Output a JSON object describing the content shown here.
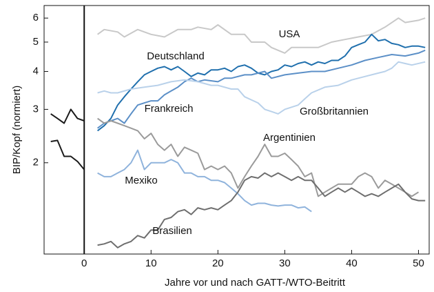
{
  "chart_data": {
    "type": "line",
    "xlabel": "Jahre vor und nach GATT-/WTO-Beitritt",
    "ylabel": "BIP/Kopf (normiert)",
    "xlim": [
      -6,
      51.6
    ],
    "xticks": [
      0,
      10,
      20,
      30,
      40,
      50
    ],
    "ylim": [
      1,
      6.6
    ],
    "yticks": [
      2,
      3,
      4,
      5,
      6
    ],
    "log_y": true,
    "vline": 0,
    "series": [
      {
        "color": "#1a1a1a",
        "x": [
          -5,
          -4,
          -3,
          -2,
          -1,
          0
        ],
        "values": [
          2.9,
          2.8,
          2.7,
          3.0,
          2.8,
          2.75
        ]
      },
      {
        "color": "#1a1a1a",
        "x": [
          -5,
          -4,
          -3,
          -2,
          -1,
          0
        ],
        "values": [
          2.35,
          2.37,
          2.1,
          2.1,
          2.02,
          1.9
        ]
      },
      {
        "name": "USA",
        "color": "#c8c8c8",
        "x": [
          2,
          3,
          5,
          6,
          8,
          10,
          12,
          14,
          16,
          17,
          19,
          20,
          22,
          24,
          25,
          27,
          28,
          30,
          31,
          33,
          35,
          37,
          39,
          41,
          43,
          45,
          47,
          48,
          50,
          51
        ],
        "values": [
          5.3,
          5.5,
          5.4,
          5.2,
          5.5,
          5.3,
          5.2,
          5.5,
          5.5,
          5.6,
          5.5,
          5.7,
          5.3,
          5.3,
          5.0,
          5.0,
          4.8,
          4.6,
          4.8,
          4.8,
          4.8,
          5.0,
          5.1,
          5.2,
          5.3,
          5.6,
          6.0,
          5.8,
          5.9,
          6.0
        ]
      },
      {
        "name": "Deutschland",
        "color": "#1f6fad",
        "x": [
          2,
          3,
          4,
          5,
          6,
          7,
          8,
          9,
          10,
          11,
          12,
          13,
          14,
          15,
          16,
          17,
          18,
          19,
          20,
          21,
          22,
          23,
          24,
          25,
          26,
          27,
          28,
          29,
          30,
          31,
          32,
          33,
          34,
          35,
          36,
          37,
          38,
          39,
          40,
          41,
          42,
          43,
          44,
          45,
          46,
          47,
          48,
          49,
          50,
          51
        ],
        "values": [
          2.55,
          2.65,
          2.8,
          3.1,
          3.3,
          3.5,
          3.7,
          3.9,
          4.0,
          4.1,
          4.15,
          4.05,
          4.15,
          4.0,
          3.85,
          3.95,
          3.9,
          4.05,
          4.05,
          4.1,
          4.0,
          4.15,
          4.2,
          4.1,
          3.95,
          3.9,
          4.0,
          4.05,
          4.2,
          4.15,
          4.25,
          4.3,
          4.2,
          4.3,
          4.25,
          4.35,
          4.35,
          4.5,
          4.8,
          4.9,
          5.0,
          5.3,
          5.05,
          5.1,
          4.95,
          4.9,
          4.8,
          4.85,
          4.85,
          4.8
        ]
      },
      {
        "name": "Frankreich",
        "color": "#5b8fc7",
        "x": [
          2,
          3,
          5,
          6,
          7,
          8,
          9,
          10,
          11,
          12,
          13,
          14,
          15,
          16,
          17,
          18,
          20,
          21,
          22,
          24,
          25,
          27,
          28,
          30,
          32,
          34,
          36,
          38,
          40,
          42,
          44,
          46,
          48,
          50,
          51
        ],
        "values": [
          2.6,
          2.7,
          2.8,
          2.7,
          2.9,
          3.1,
          3.15,
          3.2,
          3.2,
          3.35,
          3.45,
          3.55,
          3.7,
          3.8,
          3.7,
          3.75,
          3.7,
          3.8,
          3.8,
          3.9,
          3.9,
          4.0,
          3.8,
          3.9,
          3.95,
          4.0,
          4.0,
          4.1,
          4.2,
          4.35,
          4.45,
          4.55,
          4.5,
          4.6,
          4.7
        ]
      },
      {
        "name": "Großbritannien",
        "color": "#b9d1ea",
        "x": [
          2,
          3,
          4,
          5,
          7,
          9,
          11,
          13,
          15,
          17,
          19,
          20,
          22,
          23,
          24,
          26,
          27,
          28,
          29,
          30,
          32,
          33,
          34,
          36,
          38,
          40,
          42,
          44,
          45,
          46,
          47,
          48,
          49,
          51
        ],
        "values": [
          3.4,
          3.45,
          3.4,
          3.4,
          3.5,
          3.55,
          3.6,
          3.7,
          3.75,
          3.7,
          3.6,
          3.6,
          3.5,
          3.5,
          3.3,
          3.15,
          3.0,
          2.95,
          2.9,
          3.0,
          3.1,
          3.25,
          3.4,
          3.55,
          3.6,
          3.75,
          3.85,
          3.95,
          4.0,
          4.1,
          4.3,
          4.25,
          4.2,
          4.3
        ]
      },
      {
        "name": "Argentinien",
        "color": "#9a9a9a",
        "x": [
          2,
          3,
          4,
          5,
          6,
          7,
          8,
          9,
          10,
          11,
          12,
          13,
          14,
          15,
          16,
          17,
          18,
          19,
          20,
          21,
          22,
          23,
          24,
          25,
          26,
          27,
          28,
          29,
          30,
          31,
          32,
          33,
          34,
          35,
          36,
          37,
          38,
          40,
          41,
          42,
          43,
          44,
          45,
          46,
          47,
          48,
          49,
          50
        ],
        "values": [
          2.8,
          2.7,
          2.75,
          2.7,
          2.65,
          2.6,
          2.55,
          2.4,
          2.5,
          2.3,
          2.2,
          2.3,
          2.1,
          2.25,
          2.2,
          2.15,
          1.9,
          1.95,
          1.9,
          1.95,
          1.85,
          1.65,
          1.8,
          1.95,
          2.1,
          2.3,
          2.1,
          2.1,
          2.15,
          2.05,
          1.95,
          1.8,
          1.85,
          1.55,
          1.6,
          1.65,
          1.7,
          1.7,
          1.8,
          1.85,
          1.8,
          1.65,
          1.75,
          1.7,
          1.65,
          1.6,
          1.55,
          1.6
        ]
      },
      {
        "name": "Mexiko",
        "color": "#8fb3dc",
        "x": [
          2,
          3,
          4,
          5,
          6,
          7,
          8,
          9,
          10,
          11,
          12,
          13,
          14,
          15,
          16,
          17,
          18,
          19,
          20,
          21,
          22,
          23,
          24,
          25,
          26,
          27,
          28,
          29,
          30,
          31,
          32,
          33,
          34
        ],
        "values": [
          1.85,
          1.8,
          1.8,
          1.85,
          1.9,
          2.0,
          2.2,
          1.9,
          2.0,
          2.0,
          2.0,
          2.05,
          2.0,
          1.85,
          1.85,
          1.8,
          1.8,
          1.75,
          1.75,
          1.72,
          1.65,
          1.58,
          1.5,
          1.45,
          1.47,
          1.47,
          1.45,
          1.44,
          1.45,
          1.45,
          1.42,
          1.43,
          1.38
        ]
      },
      {
        "name": "Brasilien",
        "color": "#6e6e6e",
        "x": [
          2,
          3,
          4,
          5,
          6,
          7,
          8,
          9,
          10,
          11,
          12,
          13,
          14,
          15,
          16,
          17,
          18,
          19,
          20,
          21,
          22,
          23,
          24,
          25,
          26,
          27,
          28,
          29,
          30,
          31,
          32,
          33,
          34,
          35,
          36,
          37,
          38,
          39,
          40,
          41,
          42,
          43,
          44,
          45,
          46,
          47,
          48,
          49,
          50,
          51
        ],
        "values": [
          1.07,
          1.08,
          1.1,
          1.05,
          1.08,
          1.1,
          1.15,
          1.13,
          1.2,
          1.2,
          1.3,
          1.32,
          1.38,
          1.4,
          1.35,
          1.42,
          1.4,
          1.42,
          1.4,
          1.45,
          1.5,
          1.6,
          1.75,
          1.8,
          1.78,
          1.85,
          1.8,
          1.85,
          1.8,
          1.75,
          1.8,
          1.75,
          1.75,
          1.65,
          1.55,
          1.6,
          1.65,
          1.6,
          1.65,
          1.6,
          1.55,
          1.58,
          1.55,
          1.6,
          1.65,
          1.7,
          1.6,
          1.52,
          1.5,
          1.5
        ]
      }
    ]
  }
}
